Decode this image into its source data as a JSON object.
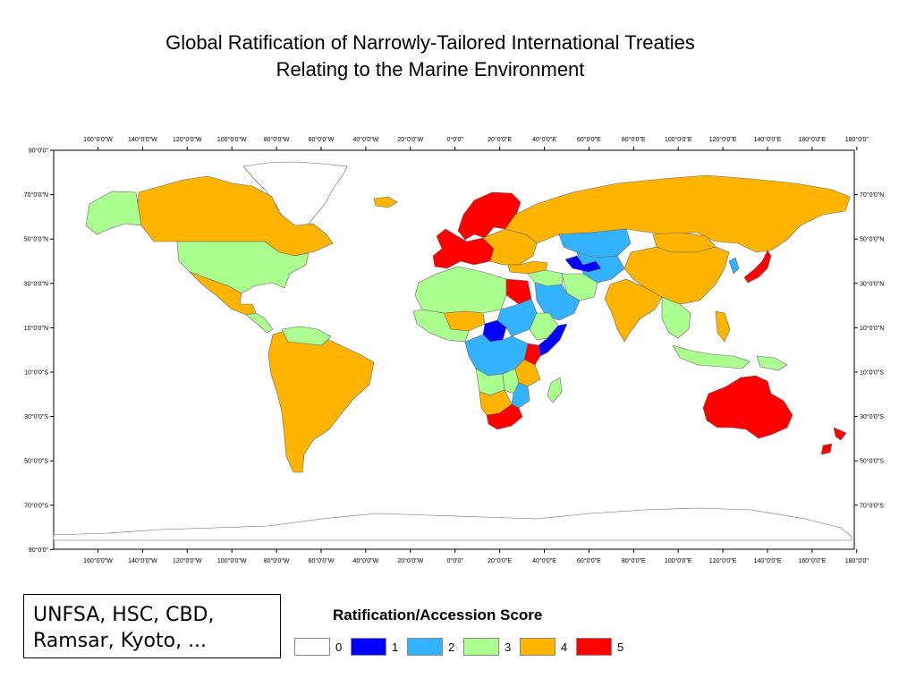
{
  "title": {
    "line1": "Global Ratification of Narrowly-Tailored International Treaties",
    "line2": "Relating to the Marine Environment"
  },
  "axes": {
    "lon_labels": [
      "160°0'0\"W",
      "140°0'0\"W",
      "120°0'0\"W",
      "100°0'0\"W",
      "80°0'0\"W",
      "60°0'0\"W",
      "40°0'0\"W",
      "20°0'0\"W",
      "0°0'0\"",
      "20°0'0\"E",
      "40°0'0\"E",
      "60°0'0\"E",
      "80°0'0\"E",
      "100°0'0\"E",
      "120°0'0\"E",
      "140°0'0\"E",
      "160°0'0\"E",
      "180°0'0\""
    ],
    "lat_labels_left": [
      "90°0'0\"",
      "70°0'0\"N",
      "50°0'0\"N",
      "30°0'0\"N",
      "10°0'0\"N",
      "10°0'0\"S",
      "30°0'0\"S",
      "50°0'0\"S",
      "70°0'0\"S",
      "90°0'0\""
    ],
    "lat_labels_right": [
      "70°0'0\"N",
      "50°0'0\"N",
      "30°0'0\"N",
      "10°0'0\"N",
      "10°0'0\"S",
      "30°0'0\"S",
      "50°0'0\"S",
      "70°0'0\"S"
    ]
  },
  "note": {
    "line1": "UNFSA, HSC, CBD,",
    "line2": "Ramsar, Kyoto, ..."
  },
  "legend": {
    "title": "Ratification/Accession Score",
    "items": [
      {
        "label": "0",
        "color": "#ffffff"
      },
      {
        "label": "1",
        "color": "#0000ff"
      },
      {
        "label": "2",
        "color": "#33b3ff"
      },
      {
        "label": "3",
        "color": "#aaff8f"
      },
      {
        "label": "4",
        "color": "#ffb400"
      },
      {
        "label": "5",
        "color": "#ff0000"
      }
    ]
  },
  "colors": {
    "score_0": "#ffffff",
    "score_1": "#0000ff",
    "score_2": "#33b3ff",
    "score_3": "#aaff8f",
    "score_4": "#ffb400",
    "score_5": "#ff0000",
    "border": "#666666"
  },
  "regions": [
    {
      "name": "Greenland",
      "score": 0
    },
    {
      "name": "Canada",
      "score": 4
    },
    {
      "name": "Alaska",
      "score": 3
    },
    {
      "name": "United States",
      "score": 3
    },
    {
      "name": "Mexico",
      "score": 4
    },
    {
      "name": "Central America",
      "score": 3
    },
    {
      "name": "South America",
      "score": 4
    },
    {
      "name": "Venezuela/Guyana",
      "score": 3
    },
    {
      "name": "Iceland",
      "score": 4
    },
    {
      "name": "Scandinavia",
      "score": 5
    },
    {
      "name": "Western Europe",
      "score": 5
    },
    {
      "name": "Eastern Europe",
      "score": 4
    },
    {
      "name": "Russia",
      "score": 4
    },
    {
      "name": "Kazakhstan",
      "score": 2
    },
    {
      "name": "Central Asia",
      "score": 2
    },
    {
      "name": "Caspian region",
      "score": 1
    },
    {
      "name": "Turkey",
      "score": 4
    },
    {
      "name": "Middle East",
      "score": 3
    },
    {
      "name": "Saudi Arabia",
      "score": 2
    },
    {
      "name": "Iran",
      "score": 3
    },
    {
      "name": "India",
      "score": 4
    },
    {
      "name": "China",
      "score": 4
    },
    {
      "name": "Mongolia",
      "score": 4
    },
    {
      "name": "Japan",
      "score": 5
    },
    {
      "name": "Korea",
      "score": 2
    },
    {
      "name": "Southeast Asia",
      "score": 3
    },
    {
      "name": "Philippines",
      "score": 4
    },
    {
      "name": "Indonesia",
      "score": 3
    },
    {
      "name": "Papua New Guinea",
      "score": 3
    },
    {
      "name": "Australia",
      "score": 5
    },
    {
      "name": "New Zealand",
      "score": 5
    },
    {
      "name": "North Africa",
      "score": 3
    },
    {
      "name": "Egypt",
      "score": 5
    },
    {
      "name": "Sudan",
      "score": 2
    },
    {
      "name": "Chad",
      "score": 1
    },
    {
      "name": "West Africa",
      "score": 3
    },
    {
      "name": "Sahel",
      "score": 4
    },
    {
      "name": "Ethiopia",
      "score": 3
    },
    {
      "name": "Somalia",
      "score": 1
    },
    {
      "name": "Kenya",
      "score": 5
    },
    {
      "name": "Central Africa",
      "score": 2
    },
    {
      "name": "Tanzania",
      "score": 4
    },
    {
      "name": "Angola",
      "score": 3
    },
    {
      "name": "Zambia",
      "score": 3
    },
    {
      "name": "Mozambique",
      "score": 2
    },
    {
      "name": "Madagascar",
      "score": 3
    },
    {
      "name": "Namibia",
      "score": 4
    },
    {
      "name": "South Africa",
      "score": 5
    },
    {
      "name": "Antarctica",
      "score": 0
    }
  ]
}
